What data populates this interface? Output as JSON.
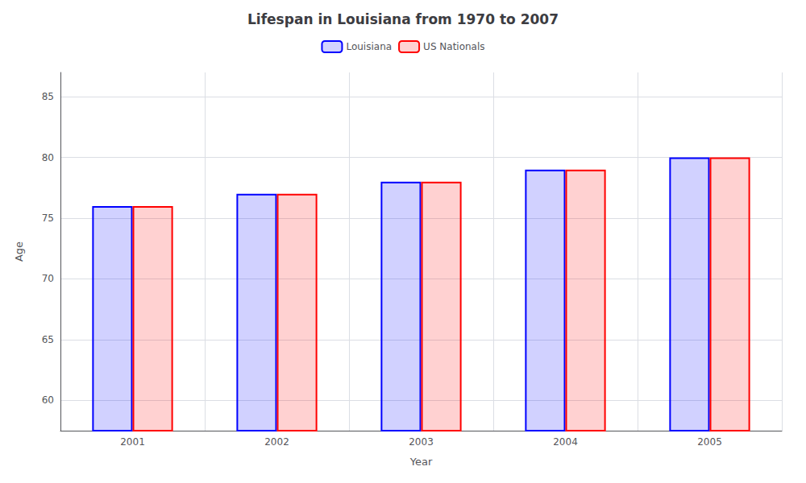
{
  "chart_data": {
    "type": "bar",
    "title": "Lifespan in Louisiana from 1970 to 2007",
    "xlabel": "Year",
    "ylabel": "Age",
    "categories": [
      "2001",
      "2002",
      "2003",
      "2004",
      "2005"
    ],
    "series": [
      {
        "name": "Louisiana",
        "color": "#0000ff",
        "values": [
          76,
          77,
          78,
          79,
          80
        ]
      },
      {
        "name": "US Nationals",
        "color": "#ff0000",
        "values": [
          76,
          77,
          78,
          79,
          80
        ]
      }
    ],
    "ylim": [
      57.5,
      87
    ],
    "yticks": [
      60,
      65,
      70,
      75,
      80,
      85
    ],
    "grid": true,
    "legend": "top"
  }
}
